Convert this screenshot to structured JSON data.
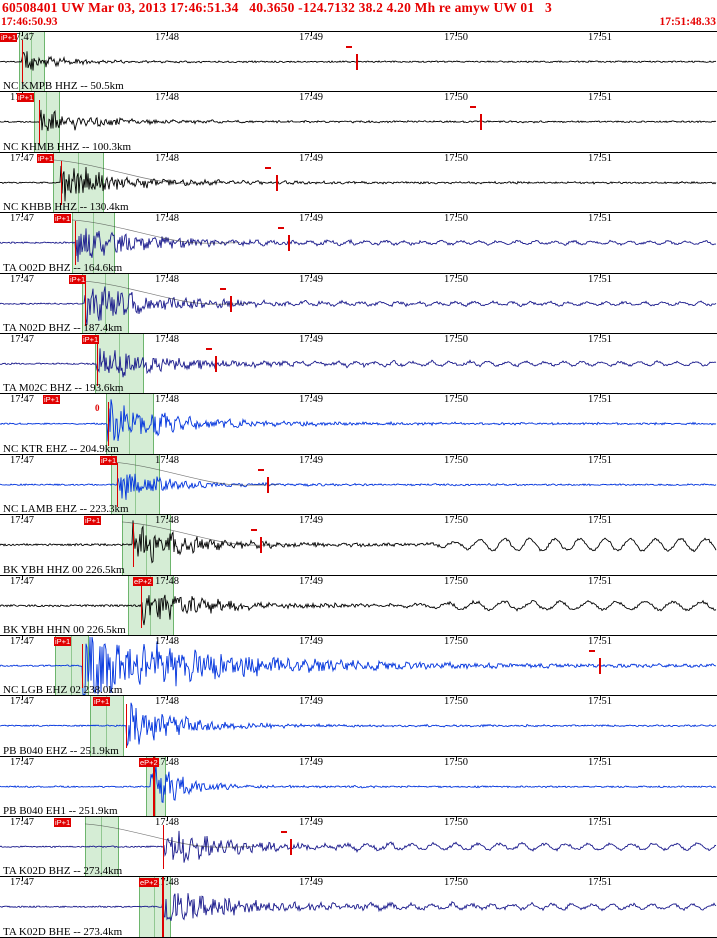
{
  "colors": {
    "accent_red": "#e60000",
    "pick_red": "#dd0000",
    "band_green": "#96d296"
  },
  "header": {
    "title": "60508401 UW Mar 03, 2013 17:46:51.34   40.3650 -124.7132 38.2 4.20 Mh re amyw UW 01   3",
    "window_start": "17:46:50.93",
    "window_end": "17:51:48.33"
  },
  "time_axis": {
    "labels": [
      "17:47",
      "17:48",
      "17:49",
      "17:50",
      "17:51"
    ],
    "positions": [
      0.0305,
      0.2323,
      0.434,
      0.6357,
      0.8375
    ]
  },
  "chart_data": {
    "type": "seismogram",
    "description": "Multi-station earthquake waveform review display; 15 channels sorted by epicentral distance, P-pick flags (red), pick search windows (green), minute time ticks 17:47-17:51.",
    "traces": [
      {
        "label": "NC KMPB HHZ -- 50.5km",
        "color": "#000000",
        "onset": 0.03,
        "amp": 13,
        "decay": 26,
        "coda": 1.6,
        "noise": 0.7,
        "band": [
          0.026,
          0.06
        ],
        "flag": {
          "label": "iP+1",
          "x": 0.0
        },
        "marker": 0.497,
        "dash": 0.482,
        "seed": 11
      },
      {
        "label": "NC KHMB HHZ -- 100.3km",
        "color": "#000000",
        "onset": 0.055,
        "amp": 17,
        "decay": 42,
        "coda": 1.8,
        "noise": 0.7,
        "band": [
          0.047,
          0.08
        ],
        "flag": {
          "label": "iP+1",
          "x": 0.024
        },
        "marker": 0.67,
        "dash": 0.655,
        "seed": 22
      },
      {
        "label": "NC KHBB HHZ -- 130.4km",
        "color": "#000000",
        "onset": 0.085,
        "amp": 21,
        "decay": 55,
        "coda": 2.0,
        "noise": 0.7,
        "band": [
          0.074,
          0.143
        ],
        "flag": {
          "label": "iP+1",
          "x": 0.052
        },
        "marker": 0.385,
        "dash": 0.37,
        "curve": true,
        "seed": 33
      },
      {
        "label": "TA O02D BHZ -- 164.6km",
        "color": "#1a1a8c",
        "onset": 0.105,
        "amp": 21,
        "decay": 58,
        "coda": 2.6,
        "noise": 0.7,
        "band": [
          0.1,
          0.157
        ],
        "flag": {
          "label": "iP+1",
          "x": 0.076
        },
        "marker": 0.402,
        "dash": 0.388,
        "curve": true,
        "wave": {
          "amp": 1.5,
          "period": 3.0,
          "after": 120
        },
        "seed": 44
      },
      {
        "label": "TA N02D BHZ -- 187.4km",
        "color": "#1a1a8c",
        "onset": 0.118,
        "amp": 22,
        "decay": 62,
        "coda": 2.4,
        "noise": 0.7,
        "band": [
          0.115,
          0.178
        ],
        "flag": {
          "label": "iP+1",
          "x": 0.096
        },
        "marker": 0.321,
        "dash": 0.307,
        "curve": true,
        "wave": {
          "amp": 1.5,
          "period": 3.0,
          "after": 150
        },
        "seed": 55
      },
      {
        "label": "TA M02C BHZ -- 193.6km",
        "color": "#1a1a8c",
        "onset": 0.135,
        "amp": 19,
        "decay": 60,
        "coda": 2.6,
        "noise": 0.7,
        "band": [
          0.133,
          0.198
        ],
        "flag": {
          "label": "iP+1",
          "x": 0.115
        },
        "marker": 0.3,
        "dash": 0.287,
        "wave": {
          "amp": 1.8,
          "period": 3.0,
          "after": 150
        },
        "seed": 66
      },
      {
        "label": "NC KTR EHZ -- 204.9km",
        "color": "#0033dd",
        "onset": 0.15,
        "amp": 26,
        "decay": 55,
        "coda": 2.2,
        "noise": 0.7,
        "band": [
          0.148,
          0.212
        ],
        "flag": {
          "label": "iP+1",
          "x": 0.06
        },
        "note": {
          "text": "0",
          "x": 0.133
        },
        "seed": 77
      },
      {
        "label": "NC LAMB EHZ -- 223.3km",
        "color": "#0033dd",
        "onset": 0.163,
        "amp": 22,
        "decay": 38,
        "coda": 1.8,
        "noise": 0.7,
        "band": [
          0.155,
          0.22
        ],
        "flag": {
          "label": "iP+1",
          "x": 0.14
        },
        "marker": 0.373,
        "dash": 0.36,
        "curve": true,
        "seed": 88
      },
      {
        "label": "BK YBH HHZ 00 226.5km",
        "color": "#000000",
        "onset": 0.185,
        "amp": 24,
        "decay": 50,
        "coda": 2.2,
        "noise": 1.0,
        "band": [
          0.17,
          0.235
        ],
        "flag": {
          "label": "iP+1",
          "x": 0.117
        },
        "marker": 0.362,
        "dash": 0.35,
        "curve": true,
        "wave": {
          "amp": 6,
          "period": 4.0,
          "after": 280
        },
        "seed": 99
      },
      {
        "label": "BK YBH HHN 00 226.5km",
        "color": "#000000",
        "onset": 0.196,
        "amp": 20,
        "decay": 55,
        "coda": 2.4,
        "noise": 1.0,
        "band": [
          0.178,
          0.24
        ],
        "flag": {
          "label": "eP+2",
          "x": 0.186
        },
        "wave": {
          "amp": 4,
          "period": 4.5,
          "after": 250
        },
        "seed": 110
      },
      {
        "label": "NC LGB EHZ 02 238.0km",
        "color": "#0033dd",
        "onset": 0.115,
        "amp": 44,
        "decay": 110,
        "coda": 3.0,
        "noise": 0.7,
        "band": [
          0.077,
          0.122
        ],
        "flag": {
          "label": "iP+1",
          "x": 0.076
        },
        "marker": 0.836,
        "dash": 0.822,
        "seed": 121
      },
      {
        "label": "PB B040 EHZ -- 251.9km",
        "color": "#0033dd",
        "onset": 0.176,
        "amp": 27,
        "decay": 45,
        "coda": 2.0,
        "noise": 0.7,
        "band": [
          0.126,
          0.17
        ],
        "flag": {
          "label": "iP+1",
          "x": 0.13
        },
        "seed": 132
      },
      {
        "label": "PB B040 EH1 -- 251.9km",
        "color": "#0033dd",
        "onset": 0.21,
        "amp": 28,
        "decay": 30,
        "coda": 1.6,
        "noise": 0.7,
        "band": [
          0.203,
          0.228
        ],
        "flag": {
          "label": "eP+2",
          "x": 0.194
        },
        "strong_pick": 0.213,
        "seed": 143
      },
      {
        "label": "TA K02D BHZ -- 273.4km",
        "color": "#1a1a8c",
        "onset": 0.228,
        "amp": 21,
        "decay": 55,
        "coda": 2.6,
        "noise": 0.7,
        "band": [
          0.118,
          0.162
        ],
        "flag": {
          "label": "iP+1",
          "x": 0.076
        },
        "marker": 0.405,
        "dash": 0.392,
        "curve": true,
        "wave": {
          "amp": 3,
          "period": 3.5,
          "after": 120
        },
        "seed": 154
      },
      {
        "label": "TA K02D BHE -- 273.4km",
        "color": "#1a1a8c",
        "onset": 0.226,
        "amp": 18,
        "decay": 68,
        "coda": 3.0,
        "noise": 0.7,
        "band": [
          0.194,
          0.236
        ],
        "flag": {
          "label": "eP+2",
          "x": 0.194
        },
        "strong_pick": 0.226,
        "wave": {
          "amp": 2.5,
          "period": 3.2,
          "after": 150
        },
        "seed": 165
      }
    ]
  }
}
